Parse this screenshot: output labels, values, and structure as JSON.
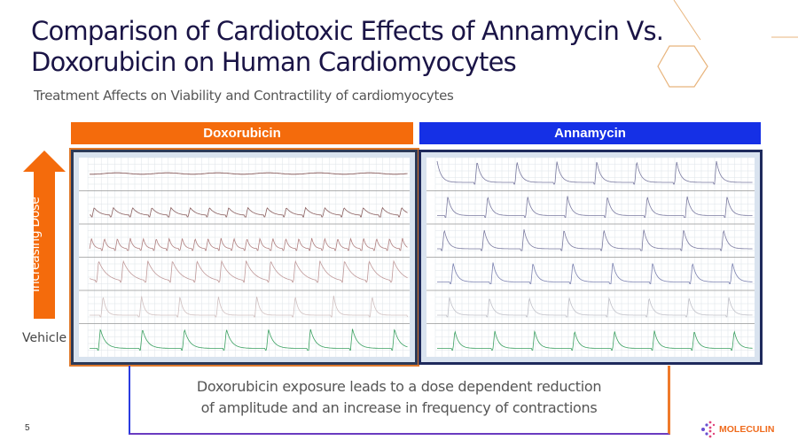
{
  "title": "Comparison of Cardiotoxic Effects of Annamycin Vs. Doxorubicin on Human Cardiomyocytes",
  "subtitle": "Treatment Affects on Viability and Contractility of cardiomyocytes",
  "panels": {
    "left": {
      "label": "Doxorubicin",
      "color": "#f46b0c"
    },
    "right": {
      "label": "Annamycin",
      "color": "#1530e6"
    }
  },
  "arrow": {
    "label": "Increasing Dose",
    "color": "#f46b0c"
  },
  "vehicle_label": "Vehicle",
  "conclusion": {
    "line1": "Doxorubicin exposure leads to a dose dependent reduction",
    "line2": "of amplitude and an increase in frequency of contractions"
  },
  "page_number": "5",
  "logo": {
    "text": "MOLECULIN"
  }
}
